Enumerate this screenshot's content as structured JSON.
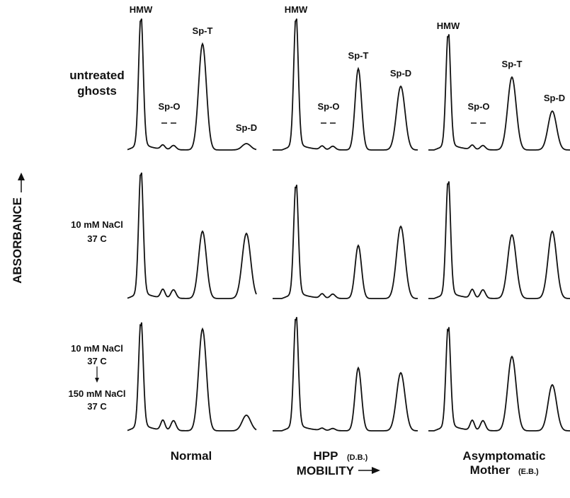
{
  "axis_labels": {
    "y": "ABSORBANCE",
    "x": "MOBILITY"
  },
  "rows": [
    {
      "lines": [
        "untreated",
        "ghosts"
      ]
    },
    {
      "lines": [
        "10 mM NaCl",
        "37 C"
      ]
    },
    {
      "lines": [
        "10 mM NaCl",
        "37 C",
        "150 mM NaCl",
        "37 C"
      ]
    }
  ],
  "columns": [
    {
      "lines": [
        "Normal"
      ]
    },
    {
      "lines": [
        "HPP"
      ],
      "note": "(D.B.)"
    },
    {
      "lines": [
        "Asymptomatic",
        "Mother"
      ],
      "note": "(E.B.)"
    }
  ],
  "peak_labels": [
    [
      "HMW",
      "Sp-O",
      "Sp-T",
      "Sp-D"
    ],
    [
      "HMW",
      "Sp-O",
      "Sp-T",
      "Sp-D"
    ],
    [
      "HMW",
      "Sp-O",
      "Sp-T",
      "Sp-D"
    ]
  ]
}
